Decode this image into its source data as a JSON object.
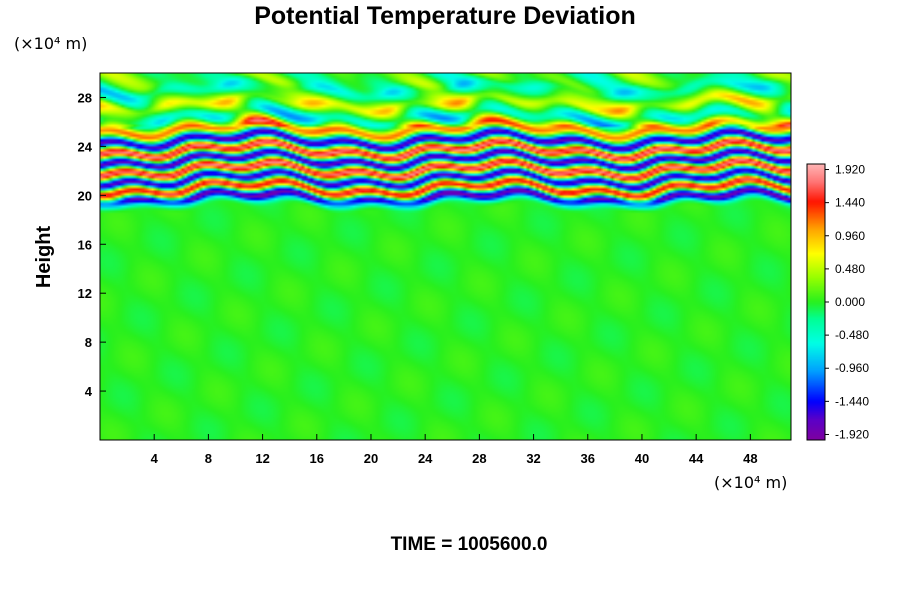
{
  "chart_data": {
    "type": "heatmap",
    "title": "Potential Temperature Deviation",
    "ylabel": "Height",
    "xlabel": "",
    "x_unit_label": "(×10⁴ m)",
    "y_unit_label": "(×10⁴ m)",
    "xlim": [
      0,
      51
    ],
    "ylim": [
      0,
      30
    ],
    "x_ticks": [
      4,
      8,
      12,
      16,
      20,
      24,
      28,
      32,
      36,
      40,
      44,
      48
    ],
    "y_ticks": [
      4,
      8,
      12,
      16,
      20,
      24,
      28
    ],
    "colorbar": {
      "min": -2.0,
      "max": 2.0,
      "tick_values": [
        1.92,
        1.44,
        0.96,
        0.48,
        0.0,
        -0.48,
        -0.96,
        -1.44,
        -1.92
      ],
      "tick_labels": [
        "1.920",
        "1.440",
        "0.960",
        "0.480",
        "0.000",
        "-0.480",
        "-0.960",
        "-1.440",
        "-1.920"
      ]
    },
    "field_description": "near-zero (green) below ~18; strong alternating positive/negative bands between ~19 and ~26; weaker waves above 26",
    "bands": [
      {
        "y": 19.8,
        "value": -1.9
      },
      {
        "y": 20.6,
        "value": 1.8
      },
      {
        "y": 21.3,
        "value": -1.9
      },
      {
        "y": 22.1,
        "value": 1.9
      },
      {
        "y": 22.9,
        "value": -1.9
      },
      {
        "y": 23.7,
        "value": 1.9
      },
      {
        "y": 24.5,
        "value": -1.8
      },
      {
        "y": 25.4,
        "value": 1.2
      },
      {
        "y": 26.4,
        "value": -0.5
      },
      {
        "y": 27.5,
        "value": 0.6
      },
      {
        "y": 28.7,
        "value": -0.4
      }
    ]
  },
  "footer": {
    "time_label": "TIME = 1005600.0"
  }
}
